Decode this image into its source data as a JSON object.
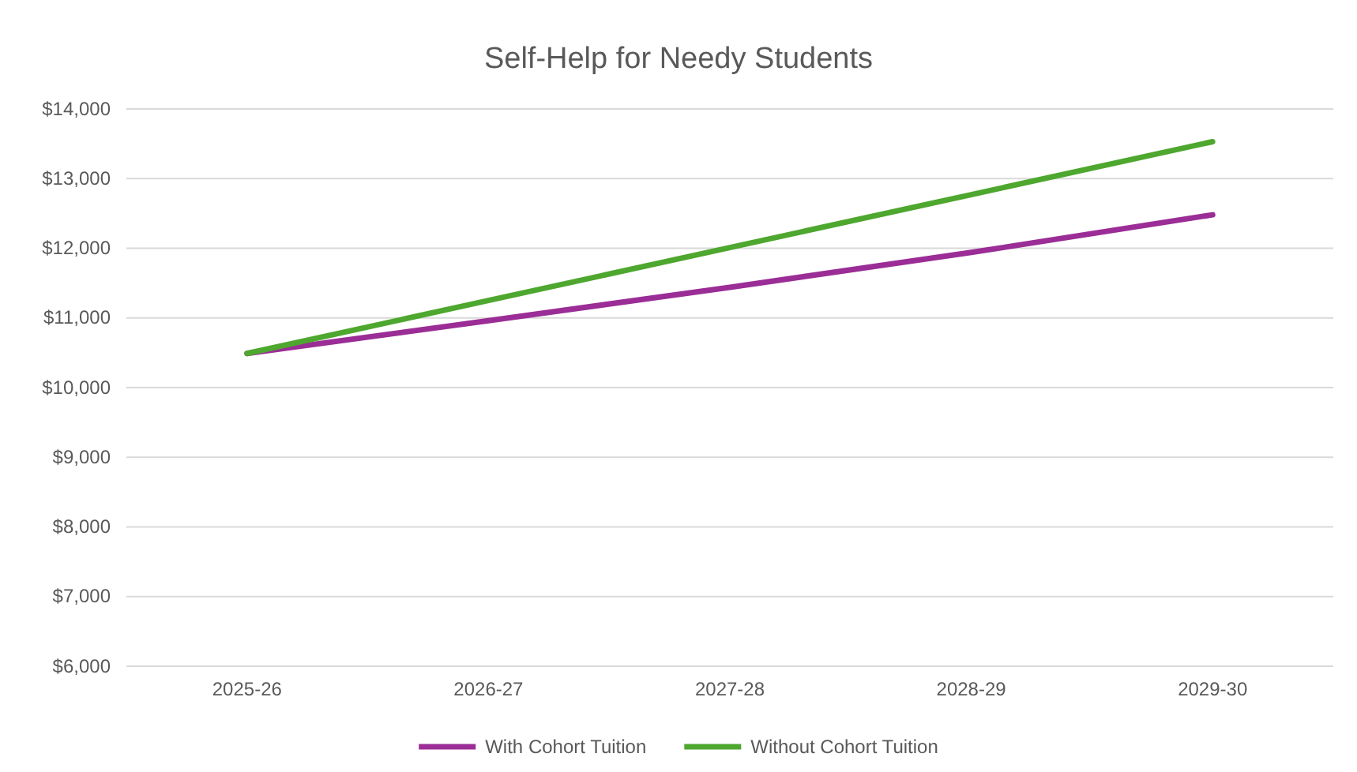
{
  "chart_data": {
    "type": "line",
    "title": "Self-Help for Needy Students",
    "categories": [
      "2025-26",
      "2026-27",
      "2027-28",
      "2028-29",
      "2029-30"
    ],
    "series": [
      {
        "name": "With Cohort Tuition",
        "color": "#9b2d96",
        "values": [
          10490,
          10960,
          11440,
          11940,
          12480
        ]
      },
      {
        "name": "Without Cohort Tuition",
        "color": "#4ea72e",
        "values": [
          10490,
          11250,
          12010,
          12770,
          13530
        ]
      }
    ],
    "ylim": [
      6000,
      14000
    ],
    "yticks": [
      {
        "value": 6000,
        "label": "$6,000"
      },
      {
        "value": 7000,
        "label": "$7,000"
      },
      {
        "value": 8000,
        "label": "$8,000"
      },
      {
        "value": 9000,
        "label": "$9,000"
      },
      {
        "value": 10000,
        "label": "$10,000"
      },
      {
        "value": 11000,
        "label": "$11,000"
      },
      {
        "value": 12000,
        "label": "$12,000"
      },
      {
        "value": 13000,
        "label": "$13,000"
      },
      {
        "value": 14000,
        "label": "$14,000"
      }
    ],
    "grid": "y",
    "legend": "bottom",
    "marker": "none",
    "line_style": "solid"
  }
}
